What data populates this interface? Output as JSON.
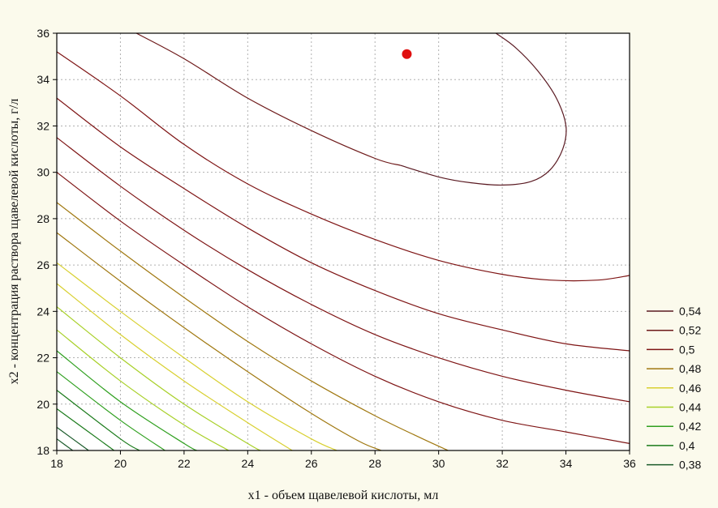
{
  "chart_data": {
    "type": "contour",
    "xlabel": "x1 - объем щавелевой кислоты, мл",
    "ylabel": "x2 - концентрация раствора щавелевой кислоты, г/л",
    "xlim": [
      18,
      36
    ],
    "ylim": [
      18,
      36
    ],
    "x_ticks": [
      "18",
      "20",
      "22",
      "24",
      "26",
      "28",
      "30",
      "32",
      "34",
      "36"
    ],
    "y_ticks": [
      "18",
      "20",
      "22",
      "24",
      "26",
      "28",
      "30",
      "32",
      "34",
      "36"
    ],
    "grid": true,
    "legend_position": "right",
    "marker": {
      "x": 29,
      "y": 35.1,
      "color": "#e01010"
    },
    "levels": [
      {
        "label": "0,54",
        "color": "#5a1a22",
        "points": [
          [
            28.8,
            30.3
          ],
          [
            30,
            29.8
          ],
          [
            31,
            29.55
          ],
          [
            32,
            29.45
          ],
          [
            32.9,
            29.6
          ],
          [
            33.5,
            30.1
          ],
          [
            33.9,
            31.0
          ],
          [
            34.0,
            32.0
          ],
          [
            33.7,
            33.2
          ],
          [
            33.1,
            34.4
          ],
          [
            32.4,
            35.4
          ],
          [
            31.8,
            36
          ]
        ]
      },
      {
        "label": "0,52",
        "color": "#6e1a1a",
        "points": [
          [
            20.5,
            36
          ],
          [
            22,
            34.9
          ],
          [
            24,
            33.2
          ],
          [
            26,
            31.8
          ],
          [
            28,
            30.6
          ],
          [
            28.8,
            30.3
          ]
        ]
      },
      {
        "label": "0,5",
        "color": "#7e1414",
        "points": [
          [
            18,
            35.2
          ],
          [
            20,
            33.3
          ],
          [
            22,
            31.2
          ],
          [
            24,
            29.5
          ],
          [
            26,
            28.2
          ],
          [
            28,
            27.1
          ],
          [
            30,
            26.2
          ],
          [
            32,
            25.6
          ],
          [
            33.5,
            25.35
          ],
          [
            35,
            25.35
          ],
          [
            36,
            25.55
          ]
        ]
      },
      {
        "label": "0,5",
        "color": "#7e1414",
        "points": [
          [
            18,
            33.2
          ],
          [
            20,
            31.1
          ],
          [
            22,
            29.3
          ],
          [
            24,
            27.6
          ],
          [
            26,
            26.1
          ],
          [
            28,
            24.9
          ],
          [
            30,
            23.9
          ],
          [
            32,
            23.2
          ],
          [
            34,
            22.6
          ],
          [
            36,
            22.3
          ]
        ]
      },
      {
        "label": "0,5",
        "color": "#7e1414",
        "points": [
          [
            18,
            31.5
          ],
          [
            20,
            29.4
          ],
          [
            22,
            27.5
          ],
          [
            24,
            25.8
          ],
          [
            26,
            24.3
          ],
          [
            28,
            23.0
          ],
          [
            30,
            22.0
          ],
          [
            32,
            21.2
          ],
          [
            34,
            20.6
          ],
          [
            36,
            20.1
          ]
        ]
      },
      {
        "label": "0,5",
        "color": "#7e1414",
        "points": [
          [
            18,
            30.0
          ],
          [
            20,
            27.9
          ],
          [
            22,
            26.0
          ],
          [
            24,
            24.2
          ],
          [
            26,
            22.6
          ],
          [
            28,
            21.2
          ],
          [
            30,
            20.1
          ],
          [
            32,
            19.3
          ],
          [
            34,
            18.8
          ],
          [
            36,
            18.3
          ]
        ]
      },
      {
        "label": "0,48",
        "color": "#a07810",
        "points": [
          [
            18,
            28.7
          ],
          [
            20,
            26.6
          ],
          [
            22,
            24.6
          ],
          [
            24,
            22.7
          ],
          [
            26,
            21.0
          ],
          [
            28,
            19.5
          ],
          [
            29.5,
            18.5
          ],
          [
            30.3,
            18
          ]
        ]
      },
      {
        "label": "0,48",
        "color": "#a07810",
        "points": [
          [
            18,
            27.4
          ],
          [
            20,
            25.3
          ],
          [
            22,
            23.3
          ],
          [
            24,
            21.4
          ],
          [
            26,
            19.6
          ],
          [
            27.5,
            18.4
          ],
          [
            28.2,
            18
          ]
        ]
      },
      {
        "label": "0,46",
        "color": "#d8d030",
        "points": [
          [
            18,
            26.1
          ],
          [
            20,
            24.0
          ],
          [
            22,
            22.0
          ],
          [
            24,
            20.1
          ],
          [
            26,
            18.5
          ],
          [
            26.8,
            18
          ]
        ]
      },
      {
        "label": "0,46",
        "color": "#d8d030",
        "points": [
          [
            18,
            25.2
          ],
          [
            20,
            23.0
          ],
          [
            22,
            21.0
          ],
          [
            24,
            19.2
          ],
          [
            25.4,
            18
          ]
        ]
      },
      {
        "label": "0,44",
        "color": "#a8d028",
        "points": [
          [
            18,
            24.2
          ],
          [
            20,
            22.0
          ],
          [
            22,
            20.0
          ],
          [
            24,
            18.3
          ],
          [
            24.4,
            18
          ]
        ]
      },
      {
        "label": "0,44",
        "color": "#a8d028",
        "points": [
          [
            18,
            23.2
          ],
          [
            20,
            21.0
          ],
          [
            22,
            19.1
          ],
          [
            23.4,
            18
          ]
        ]
      },
      {
        "label": "0,42",
        "color": "#30a020",
        "points": [
          [
            18,
            22.3
          ],
          [
            20,
            20.1
          ],
          [
            22,
            18.3
          ],
          [
            22.4,
            18
          ]
        ]
      },
      {
        "label": "0,42",
        "color": "#30a020",
        "points": [
          [
            18,
            21.4
          ],
          [
            20,
            19.3
          ],
          [
            21.4,
            18
          ]
        ]
      },
      {
        "label": "0,4",
        "color": "#1a7a1a",
        "points": [
          [
            18,
            20.6
          ],
          [
            20,
            18.5
          ],
          [
            20.6,
            18
          ]
        ]
      },
      {
        "label": "0,4",
        "color": "#1a7a1a",
        "points": [
          [
            18,
            19.8
          ],
          [
            19.8,
            18
          ]
        ]
      },
      {
        "label": "0,38",
        "color": "#1a5a2a",
        "points": [
          [
            18,
            19.0
          ],
          [
            19.0,
            18
          ]
        ]
      },
      {
        "label": "0,38",
        "color": "#1a5a2a",
        "points": [
          [
            18,
            18.5
          ],
          [
            18.5,
            18
          ]
        ]
      }
    ],
    "legend": [
      {
        "label": "0,54",
        "color": "#5a1a22"
      },
      {
        "label": "0,52",
        "color": "#6e1a1a"
      },
      {
        "label": "0,5",
        "color": "#7e1414"
      },
      {
        "label": "0,48",
        "color": "#a07810"
      },
      {
        "label": "0,46",
        "color": "#d8d030"
      },
      {
        "label": "0,44",
        "color": "#a8d028"
      },
      {
        "label": "0,42",
        "color": "#30a020"
      },
      {
        "label": "0,4",
        "color": "#1a7a1a"
      },
      {
        "label": "0,38",
        "color": "#1a5a2a"
      }
    ]
  }
}
